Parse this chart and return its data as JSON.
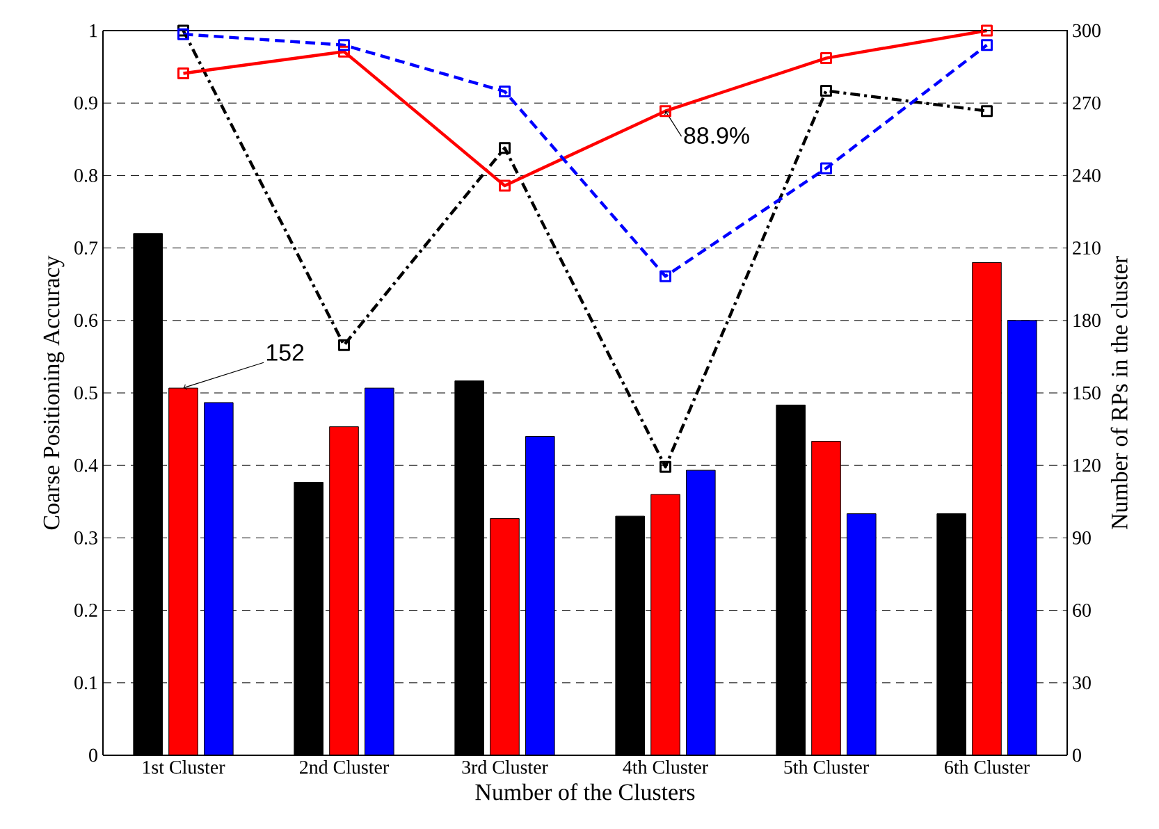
{
  "chart_data": {
    "type": "bar",
    "xlabel": "Number of the Clusters",
    "ylabel": "Coarse Positioning Accuracy",
    "y2label": "Number of RPs in the cluster",
    "categories": [
      "1st Cluster",
      "2nd Cluster",
      "3rd Cluster",
      "4th Cluster",
      "5th Cluster",
      "6th Cluster"
    ],
    "series": [
      {
        "axis": "y2",
        "color": "#000000",
        "values": [
          216,
          113,
          155,
          99,
          145,
          100
        ]
      },
      {
        "axis": "y2",
        "color": "#ff0000",
        "values": [
          152,
          136,
          98,
          108,
          130,
          204
        ]
      },
      {
        "axis": "y2",
        "color": "#0000ff",
        "values": [
          146,
          152,
          132,
          118,
          100,
          180
        ]
      },
      {
        "type": "line",
        "color": "#000000",
        "line_style": "dashdot",
        "values": [
          1.0,
          0.566,
          0.838,
          0.398,
          0.917,
          0.889
        ]
      },
      {
        "type": "line",
        "color": "#ff0000",
        "line_style": "solid",
        "values": [
          0.941,
          0.971,
          0.786,
          0.889,
          0.962,
          1.0
        ]
      },
      {
        "type": "line",
        "color": "#0000ff",
        "line_style": "dashed",
        "values": [
          0.995,
          0.98,
          0.916,
          0.661,
          0.81,
          0.98
        ]
      }
    ],
    "ylim": [
      0,
      1
    ],
    "yticks": [
      0,
      0.1,
      0.2,
      0.3,
      0.4,
      0.5,
      0.6,
      0.7,
      0.8,
      0.9,
      1
    ],
    "y2lim": [
      0,
      300
    ],
    "y2ticks": [
      0,
      30,
      60,
      90,
      120,
      150,
      180,
      210,
      240,
      270,
      300
    ],
    "grid": true,
    "marker": "square",
    "annotations": [
      {
        "text": "152",
        "x": "1st Cluster",
        "y": 0.507
      },
      {
        "text": "88.9%",
        "x": "4th Cluster",
        "y": 0.889
      }
    ]
  }
}
